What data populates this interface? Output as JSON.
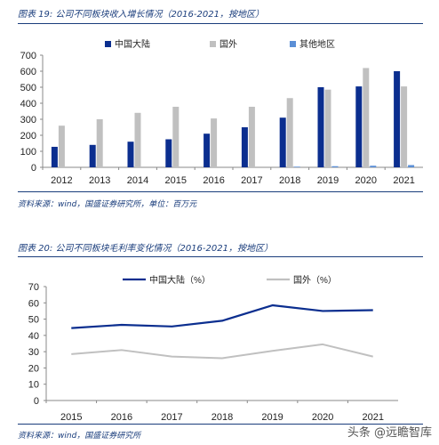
{
  "figures": [
    {
      "title": "图表 19:  公司不同板块收入增长情况（2016-2021，按地区）",
      "source": "资料来源：wind，国盛证券研究所，单位：百万元"
    },
    {
      "title": "图表 20:  公司不同板块毛利率变化情况（2016-2021，按地区）",
      "source": "资料来源：wind，国盛证券研究所"
    }
  ],
  "watermark": "头条 @远瞻智库",
  "colors": {
    "china": "#0b2e8f",
    "overseas": "#c0c0c0",
    "other": "#5b8fd6",
    "text": "#1a3d7c"
  },
  "chart_data": [
    {
      "type": "bar",
      "title": "",
      "categories": [
        "2012",
        "2013",
        "2014",
        "2015",
        "2016",
        "2017",
        "2018",
        "2019",
        "2020",
        "2021"
      ],
      "series": [
        {
          "name": "中国大陆",
          "values": [
            128,
            140,
            160,
            175,
            210,
            250,
            310,
            500,
            505,
            600
          ]
        },
        {
          "name": "国外",
          "values": [
            260,
            300,
            340,
            378,
            305,
            378,
            432,
            485,
            620,
            505
          ]
        },
        {
          "name": "其他地区",
          "values": [
            0,
            0,
            0,
            0,
            0,
            0,
            4,
            7,
            10,
            14
          ]
        }
      ],
      "ylim": [
        0,
        700
      ],
      "yticks": [
        0,
        100,
        200,
        300,
        400,
        500,
        600,
        700
      ],
      "legend": "top",
      "grid": false
    },
    {
      "type": "line",
      "title": "",
      "categories": [
        "2015",
        "2016",
        "2017",
        "2018",
        "2019",
        "2020",
        "2021"
      ],
      "series": [
        {
          "name": "中国大陆（%）",
          "values": [
            44.5,
            46.5,
            45.5,
            49,
            58.5,
            55,
            55.5
          ]
        },
        {
          "name": "国外（%）",
          "values": [
            28.5,
            31,
            27,
            26,
            30.5,
            34.5,
            27
          ]
        }
      ],
      "ylim": [
        0,
        70
      ],
      "yticks": [
        0,
        10,
        20,
        30,
        40,
        50,
        60,
        70
      ],
      "legend": "top",
      "grid": false
    }
  ]
}
